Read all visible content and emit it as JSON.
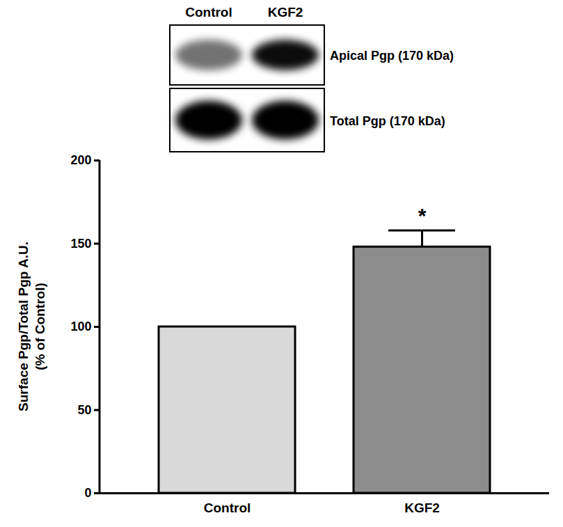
{
  "chart_data": {
    "type": "bar",
    "categories": [
      "Control",
      "KGF2"
    ],
    "values": [
      100,
      148
    ],
    "errors": [
      null,
      10
    ],
    "colors": [
      "#d9d9d9",
      "#8c8c8c"
    ],
    "ylabel": "Surface Pgp/Total Pgp A.U.\n(% of Control)",
    "ylim": [
      0,
      200
    ],
    "yticks": [
      0,
      50,
      100,
      150,
      200
    ],
    "annotations": [
      {
        "category": "KGF2",
        "text": "*"
      }
    ],
    "inset": {
      "lanes": [
        "Control",
        "KGF2"
      ],
      "bands": [
        "Apical Pgp (170 kDa)",
        "Total Pgp (170 kDa)"
      ]
    }
  }
}
